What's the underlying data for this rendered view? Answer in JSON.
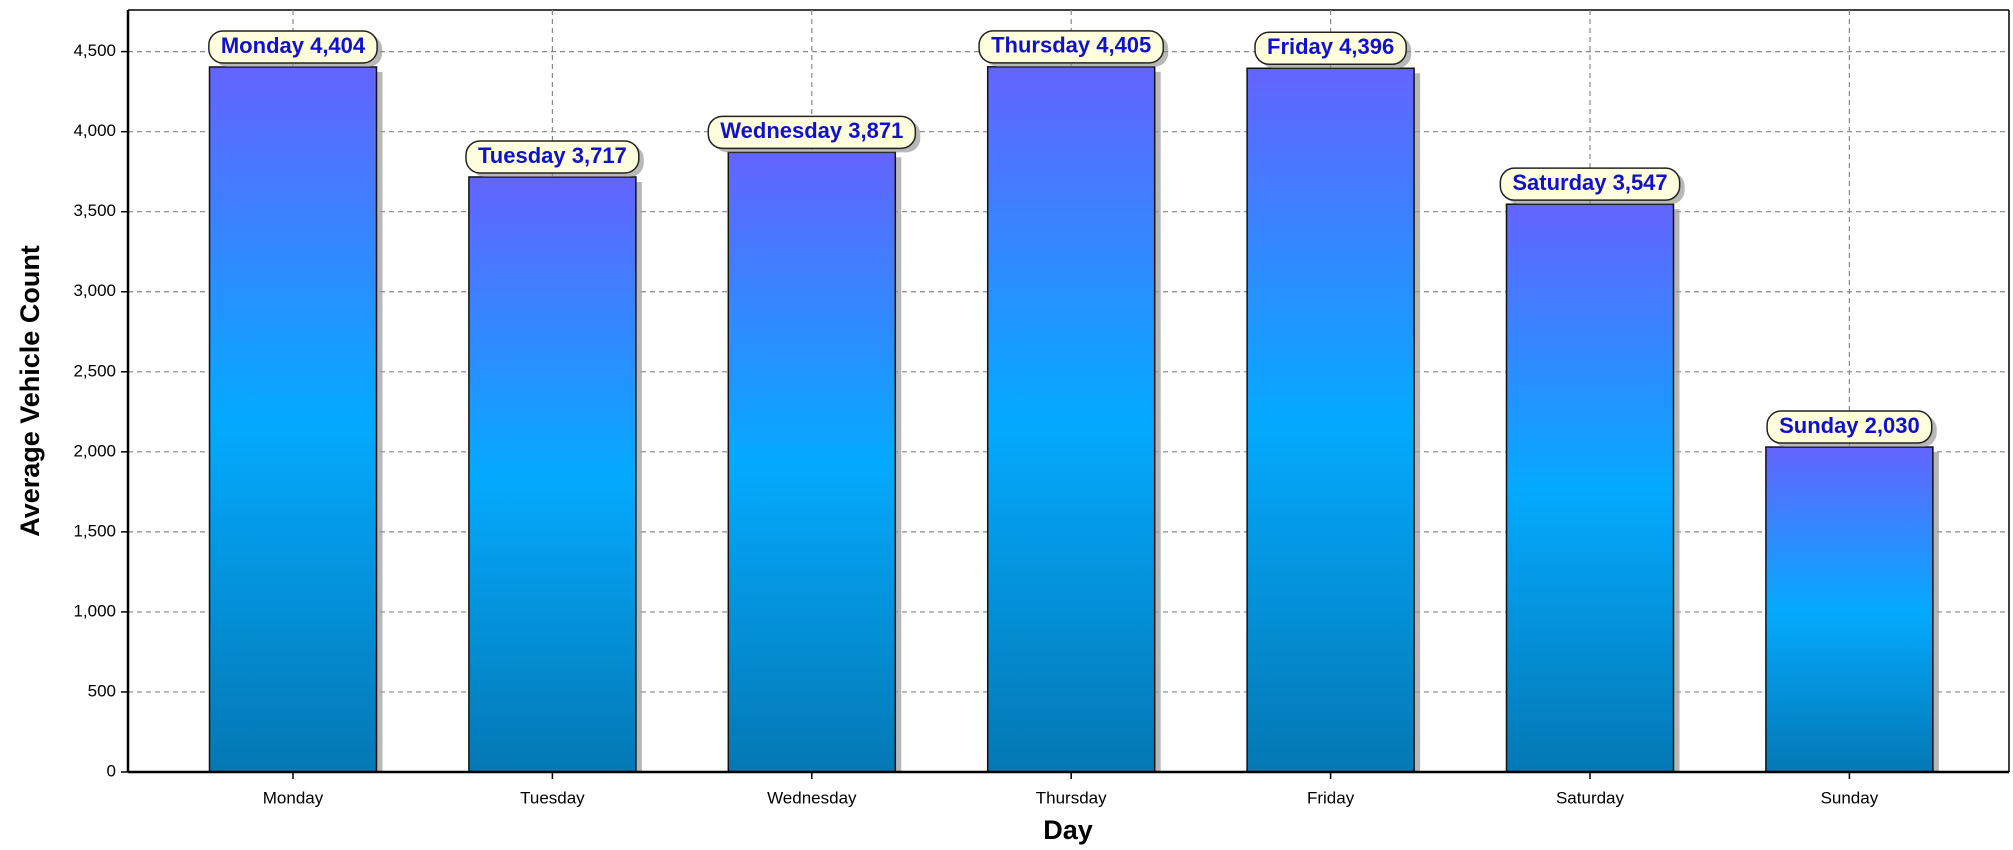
{
  "chart_data": {
    "type": "bar",
    "x_label": "Day",
    "y_label": "Average Vehicle Count",
    "categories": [
      "Monday",
      "Tuesday",
      "Wednesday",
      "Thursday",
      "Friday",
      "Saturday",
      "Sunday"
    ],
    "values": [
      4404,
      3717,
      3871,
      4405,
      4396,
      3547,
      2030
    ],
    "value_labels": [
      "Monday 4,404",
      "Tuesday 3,717",
      "Wednesday 3,871",
      "Thursday 4,405",
      "Friday 4,396",
      "Saturday 3,547",
      "Sunday 2,030"
    ],
    "color": "#1aa0ff",
    "ylim": [
      0,
      4760
    ],
    "yticks": [
      0,
      500,
      {
        "value": 1000,
        "label": "1,000"
      },
      {
        "value": 1500,
        "label": "1,500"
      },
      {
        "value": 2000,
        "label": "2,000"
      },
      {
        "value": 2500,
        "label": "2,500"
      },
      {
        "value": 3000,
        "label": "3,000"
      },
      {
        "value": 3500,
        "label": "3,500"
      },
      {
        "value": 4000,
        "label": "4,000"
      },
      {
        "value": 4500,
        "label": "4,500"
      }
    ],
    "grid": true
  }
}
